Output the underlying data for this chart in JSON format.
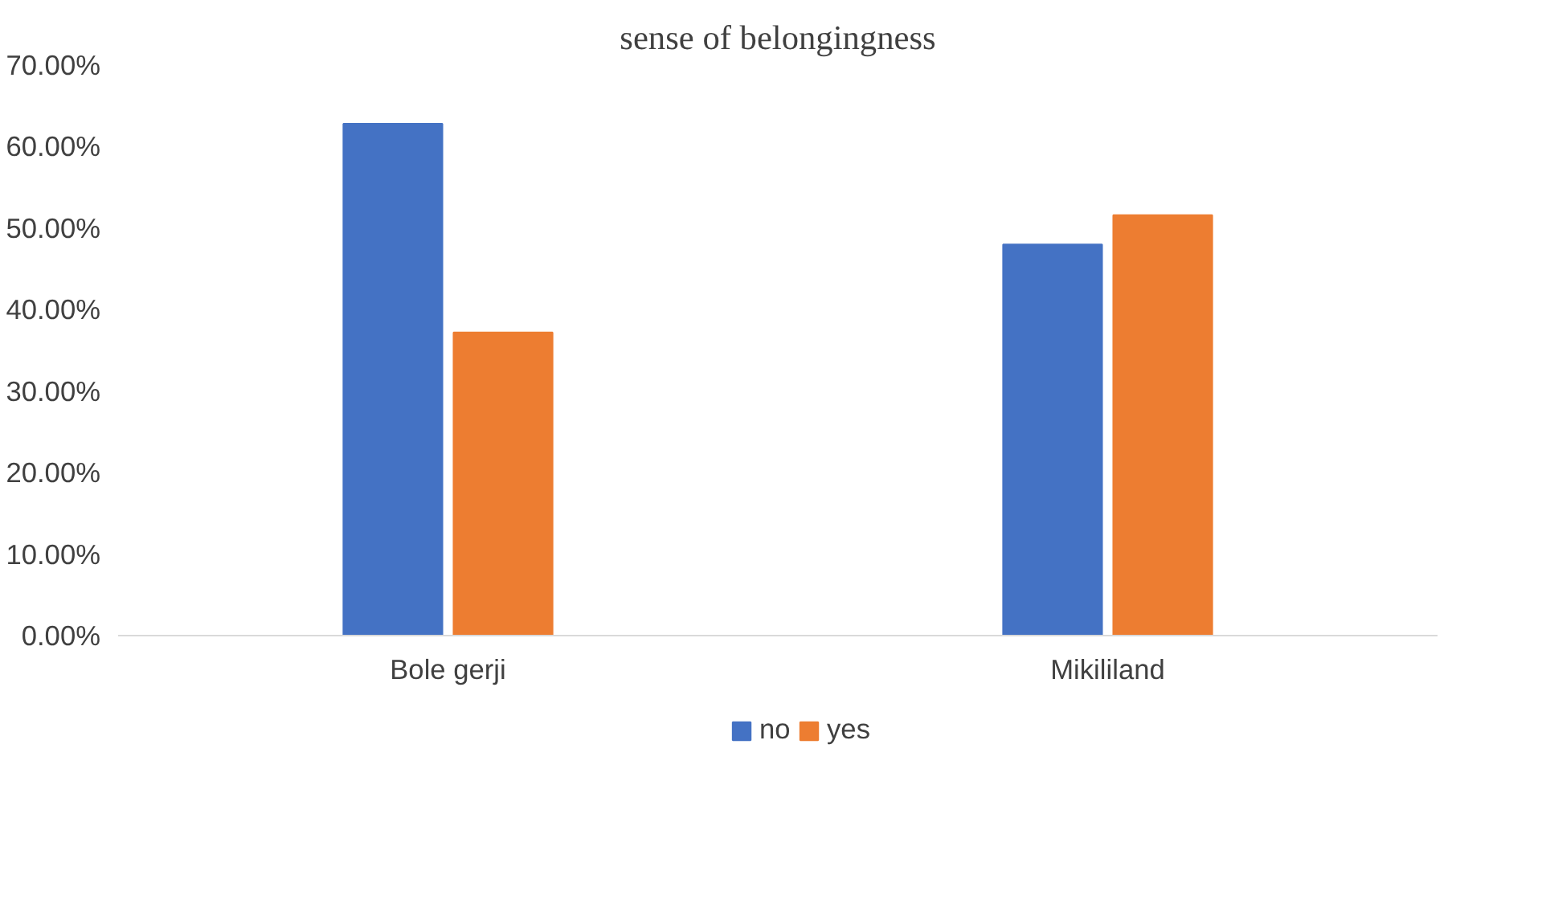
{
  "chart_data": {
    "type": "bar",
    "title": "sense of belongingness",
    "categories": [
      "Bole gerji",
      "Mikililand"
    ],
    "series": [
      {
        "name": "no",
        "color": "#4472c4",
        "values": [
          62.8,
          48.0
        ]
      },
      {
        "name": "yes",
        "color": "#ed7d31",
        "values": [
          37.2,
          51.6
        ]
      }
    ],
    "ylim": [
      0,
      70
    ],
    "yticks": [
      {
        "value": 0,
        "label": "0.00%"
      },
      {
        "value": 10,
        "label": "10.00%"
      },
      {
        "value": 20,
        "label": "20.00%"
      },
      {
        "value": 30,
        "label": "30.00%"
      },
      {
        "value": 40,
        "label": "40.00%"
      },
      {
        "value": 50,
        "label": "50.00%"
      },
      {
        "value": 60,
        "label": "60.00%"
      },
      {
        "value": 70,
        "label": "70.00%"
      }
    ],
    "grid": false,
    "legend": "bottom"
  }
}
